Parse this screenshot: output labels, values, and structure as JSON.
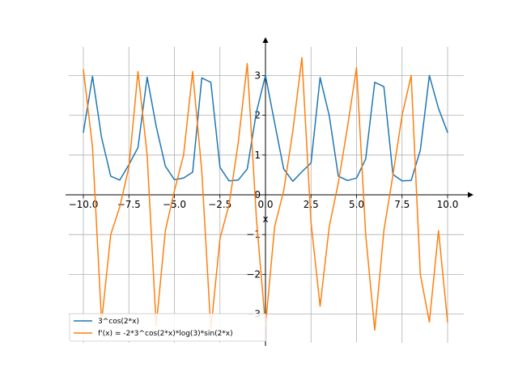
{
  "chart_data": {
    "type": "line",
    "title": "",
    "xlabel": "x",
    "ylabel": "",
    "xlim": [
      -10.0,
      10.0
    ],
    "ylim": [
      -3.7,
      3.9
    ],
    "grid": true,
    "legend_position": "lower-left",
    "x_ticks": [
      -10.0,
      -7.5,
      -5.0,
      -2.5,
      0.0,
      2.5,
      5.0,
      7.5,
      10.0
    ],
    "x_tick_labels": [
      "−10.0",
      "−7.5",
      "−5.0",
      "−2.5",
      "0.0",
      "2.5",
      "5.0",
      "7.5",
      "10.0"
    ],
    "y_ticks": [
      -3,
      -2,
      -1,
      0,
      1,
      2,
      3
    ],
    "y_tick_labels": [
      "−3",
      "−2",
      "−1",
      "0",
      "1",
      "2",
      "3"
    ],
    "series": [
      {
        "name": "3^cos(2*x)",
        "color": "#1f77b4",
        "x": [
          -10.0,
          -9.5,
          -9.0,
          -8.5,
          -8.0,
          -7.5,
          -7.0,
          -6.5,
          -6.0,
          -5.5,
          -5.0,
          -4.5,
          -4.0,
          -3.5,
          -3.0,
          -2.5,
          -2.0,
          -1.5,
          -1.0,
          -0.5,
          0.0,
          0.5,
          1.0,
          1.5,
          2.0,
          2.5,
          3.0,
          3.5,
          4.0,
          4.5,
          5.0,
          5.5,
          6.0,
          6.5,
          7.0,
          7.5,
          8.0,
          8.5,
          9.0,
          9.5,
          10.0
        ],
        "y": [
          1.57,
          2.98,
          1.44,
          0.47,
          0.37,
          0.76,
          1.19,
          2.96,
          1.72,
          0.72,
          0.38,
          0.42,
          0.57,
          2.94,
          2.83,
          0.69,
          0.35,
          0.37,
          0.65,
          2.08,
          3.0,
          1.81,
          0.65,
          0.34,
          0.58,
          0.8,
          2.95,
          1.99,
          0.47,
          0.36,
          0.42,
          0.9,
          2.83,
          2.72,
          0.51,
          0.35,
          0.36,
          1.12,
          3.0,
          2.17,
          1.57
        ]
      },
      {
        "name": "f'(x) = -2*3^cos(2*x)*log(3)*sin(2*x)",
        "color": "#ff7f0e",
        "x": [
          -10.0,
          -9.5,
          -9.0,
          -8.5,
          -8.0,
          -7.5,
          -7.0,
          -6.5,
          -6.0,
          -5.5,
          -5.0,
          -4.5,
          -4.0,
          -3.5,
          -3.0,
          -2.5,
          -2.0,
          -1.5,
          -1.0,
          -0.5,
          0.0,
          0.5,
          1.0,
          1.5,
          2.0,
          2.5,
          3.0,
          3.5,
          4.0,
          4.5,
          5.0,
          5.5,
          6.0,
          6.5,
          7.0,
          7.5,
          8.0,
          8.5,
          9.0,
          9.5,
          10.0
        ],
        "y": [
          3.15,
          1.2,
          -3.2,
          -1.0,
          -0.3,
          0.7,
          3.1,
          1.0,
          -3.3,
          -0.9,
          0.1,
          1.0,
          3.1,
          0.6,
          -3.4,
          -1.1,
          -0.25,
          1.3,
          3.3,
          -0.6,
          -3.3,
          -0.8,
          0.1,
          1.6,
          3.45,
          -0.7,
          -2.8,
          -0.8,
          0.3,
          1.7,
          3.2,
          -1.0,
          -3.4,
          -0.9,
          0.5,
          2.0,
          3.0,
          -2.0,
          -3.2,
          -0.9,
          -3.2
        ]
      }
    ]
  }
}
